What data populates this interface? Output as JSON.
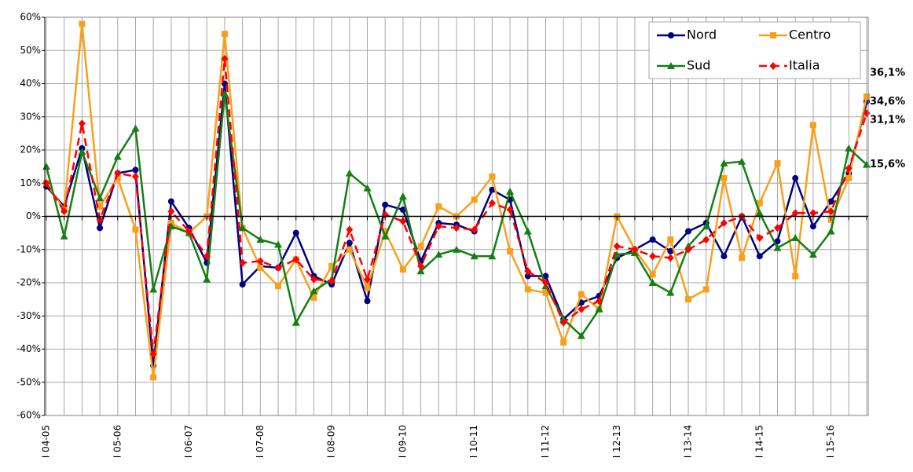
{
  "chart_data": {
    "type": "line",
    "categories": [
      "I 04-05",
      null,
      null,
      null,
      "I 05-06",
      null,
      null,
      null,
      "I 06-07",
      null,
      null,
      null,
      "I 07-08",
      null,
      null,
      null,
      "I 08-09",
      null,
      null,
      null,
      "I 09-10",
      null,
      null,
      null,
      "I 10-11",
      null,
      null,
      null,
      "I 11-12",
      null,
      null,
      null,
      "I 12-13",
      null,
      null,
      null,
      "I 13-14",
      null,
      null,
      null,
      "I 14-15",
      null,
      null,
      null,
      "I 15-16",
      null,
      null
    ],
    "ylim": [
      -60,
      60
    ],
    "yticks": [
      {
        "value": -60,
        "label": "-60%"
      },
      {
        "value": -50,
        "label": "-50%"
      },
      {
        "value": -40,
        "label": "-40%"
      },
      {
        "value": -30,
        "label": "-30%"
      },
      {
        "value": -20,
        "label": "-20%"
      },
      {
        "value": -10,
        "label": "-10%"
      },
      {
        "value": 0,
        "label": "0%"
      },
      {
        "value": 10,
        "label": "10%"
      },
      {
        "value": 20,
        "label": "20%"
      },
      {
        "value": 30,
        "label": "30%"
      },
      {
        "value": 40,
        "label": "40%"
      },
      {
        "value": 50,
        "label": "50%"
      },
      {
        "value": 60,
        "label": "60%"
      }
    ],
    "grid": true,
    "legend": "upper right",
    "series": [
      {
        "name": "Nord",
        "color": "#000080",
        "marker": "circle",
        "dashed": false,
        "values": [
          9,
          3,
          20.5,
          -3.5,
          13,
          14,
          -45,
          4.5,
          -3.5,
          -14,
          40,
          -20.5,
          -15,
          -15.5,
          -5,
          -18,
          -20.5,
          -8,
          -25.5,
          3.5,
          2,
          -13.5,
          -2,
          -2.5,
          -4.5,
          8,
          5,
          -18,
          -18,
          -31,
          -26,
          -24,
          -12.5,
          -10,
          -7,
          -10.5,
          -4.5,
          -2,
          -12,
          0,
          -12,
          -7.5,
          11.5,
          -3,
          4.5,
          13,
          34.6
        ],
        "value_labels": [
          null,
          null,
          null,
          null,
          null,
          null,
          null,
          null,
          null,
          null,
          null,
          null,
          null,
          null,
          null,
          null,
          null,
          null,
          null,
          null,
          null,
          null,
          null,
          null,
          null,
          null,
          null,
          null,
          null,
          null,
          null,
          null,
          null,
          null,
          null,
          null,
          null,
          null,
          null,
          null,
          null,
          null,
          null,
          null,
          null,
          null,
          "34,6%"
        ]
      },
      {
        "name": "Centro",
        "color": "#f9a01b",
        "marker": "square",
        "dashed": false,
        "values": [
          10,
          2,
          58,
          3,
          11.5,
          -4,
          -48.5,
          -2,
          -5,
          0,
          55,
          -3.5,
          -15.5,
          -21,
          -13,
          -24.5,
          -15,
          -10,
          -21.5,
          -4.5,
          -16,
          -9,
          3,
          0,
          5,
          12,
          -10.5,
          -22,
          -23,
          -38,
          -23.5,
          -28,
          0,
          -10,
          -17.5,
          -7,
          -25,
          -22,
          11.5,
          -12.5,
          4,
          16,
          -18,
          27.5,
          -1,
          11.5,
          36.1
        ],
        "value_labels": [
          null,
          null,
          null,
          null,
          null,
          null,
          null,
          null,
          null,
          null,
          null,
          null,
          null,
          null,
          null,
          null,
          null,
          null,
          null,
          null,
          null,
          null,
          null,
          null,
          null,
          null,
          null,
          null,
          null,
          null,
          null,
          null,
          null,
          null,
          null,
          null,
          null,
          null,
          null,
          null,
          null,
          null,
          null,
          null,
          null,
          null,
          "36,1%"
        ]
      },
      {
        "name": "Sud",
        "color": "#138013",
        "marker": "triangle",
        "dashed": false,
        "values": [
          15,
          -6,
          19.5,
          5.5,
          18,
          26.5,
          -22,
          -3,
          -5,
          -19,
          37,
          -3.5,
          -7,
          -8.5,
          -32,
          -22.5,
          -19,
          13,
          8.5,
          -6,
          6,
          -16.5,
          -11.5,
          -10,
          -12,
          -12,
          7.5,
          -4.5,
          -21,
          -31,
          -36,
          -28,
          -11.5,
          -11,
          -20,
          -23,
          -9,
          -3,
          16,
          16.5,
          1,
          -9.5,
          -6.5,
          -11.5,
          -4.5,
          20.5,
          15.6
        ],
        "value_labels": [
          null,
          null,
          null,
          null,
          null,
          null,
          null,
          null,
          null,
          null,
          null,
          null,
          null,
          null,
          null,
          null,
          null,
          null,
          null,
          null,
          null,
          null,
          null,
          null,
          null,
          null,
          null,
          null,
          null,
          null,
          null,
          null,
          null,
          null,
          null,
          null,
          null,
          null,
          null,
          null,
          null,
          null,
          null,
          null,
          null,
          null,
          "15,6%"
        ]
      },
      {
        "name": "Italia",
        "color": "#ff0000",
        "marker": "diamond",
        "dashed": true,
        "values": [
          10,
          1.5,
          28,
          -1,
          13,
          12,
          -41.5,
          1.5,
          -4.5,
          -12,
          47.5,
          -14,
          -13.5,
          -15.5,
          -13,
          -19,
          -19.5,
          -4,
          -19,
          0.5,
          -1.5,
          -15,
          -3,
          -3.5,
          -4,
          4,
          2,
          -16.5,
          -20,
          -32,
          -28,
          -25.5,
          -9,
          -10,
          -12,
          -12.5,
          -10,
          -7,
          -2,
          0,
          -6.5,
          -3.5,
          1,
          1,
          1.5,
          14.5,
          31.1
        ],
        "value_labels": [
          null,
          null,
          null,
          null,
          null,
          null,
          null,
          null,
          null,
          null,
          null,
          null,
          null,
          null,
          null,
          null,
          null,
          null,
          null,
          null,
          null,
          null,
          null,
          null,
          null,
          null,
          null,
          null,
          null,
          null,
          null,
          null,
          null,
          null,
          null,
          null,
          null,
          null,
          null,
          null,
          null,
          null,
          null,
          null,
          null,
          null,
          "31,1%"
        ]
      }
    ]
  }
}
